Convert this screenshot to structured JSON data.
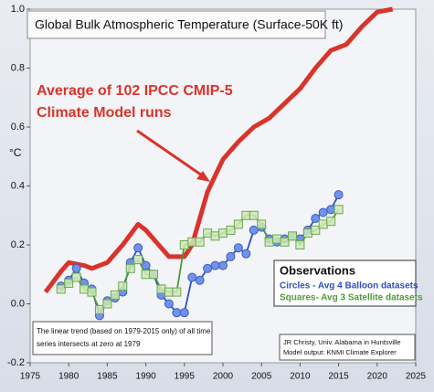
{
  "chart_data": {
    "type": "line",
    "title": "Global Bulk Atmospheric Temperature (Surface-50K ft)",
    "ylabel": "°C",
    "xlim": [
      1975,
      2025
    ],
    "xticks": [
      1975,
      1980,
      1985,
      1990,
      1995,
      2000,
      2005,
      2010,
      2015,
      2020,
      2025
    ],
    "ylim": [
      -0.2,
      1.0
    ],
    "yticks": [
      -0.2,
      {
        "value": 0,
        "label": "0.0"
      },
      0.2,
      0.4,
      0.6,
      0.8,
      {
        "value": 1,
        "label": "1.0"
      }
    ],
    "legend_title": "Observations",
    "note": [
      "The linear trend (based on 1979-2015 only) of all time",
      "series intersects at zero at 1979"
    ],
    "credits": [
      "JR Christy, Univ. Alabama in Huntsville",
      "Model output: KNMI Climate Explorer"
    ],
    "series": [
      {
        "name": [
          "Average of 102 IPCC CMIP-5",
          "Climate Model runs"
        ],
        "color": "#d9342b",
        "marker": "none",
        "x": [
          1977,
          1979,
          1980,
          1982,
          1983,
          1985,
          1987,
          1989,
          1990,
          1992,
          1993,
          1995,
          1996,
          1998,
          2000,
          2002,
          2004,
          2006,
          2008,
          2010,
          2012,
          2014,
          2016,
          2018,
          2020,
          2022
        ],
        "values": [
          0.04,
          0.11,
          0.14,
          0.13,
          0.12,
          0.14,
          0.2,
          0.27,
          0.25,
          0.19,
          0.16,
          0.16,
          0.2,
          0.38,
          0.49,
          0.55,
          0.6,
          0.63,
          0.68,
          0.73,
          0.8,
          0.86,
          0.88,
          0.94,
          0.99,
          1.0
        ]
      },
      {
        "name": "Circles - Avg 4 Balloon datasets",
        "color": "#2f4fc0",
        "marker": "circle",
        "x": [
          1979,
          1980,
          1981,
          1982,
          1983,
          1984,
          1985,
          1986,
          1987,
          1988,
          1989,
          1990,
          1991,
          1992,
          1993,
          1994,
          1995,
          1996,
          1997,
          1998,
          1999,
          2000,
          2001,
          2002,
          2003,
          2004,
          2005,
          2006,
          2007,
          2008,
          2009,
          2010,
          2011,
          2012,
          2013,
          2014,
          2015
        ],
        "values": [
          0.06,
          0.08,
          0.12,
          0.07,
          0.05,
          -0.04,
          0.01,
          0.02,
          0.04,
          0.14,
          0.19,
          0.13,
          0.1,
          0.03,
          0.0,
          -0.03,
          -0.03,
          0.09,
          0.08,
          0.12,
          0.13,
          0.13,
          0.16,
          0.19,
          0.17,
          0.25,
          0.26,
          0.22,
          0.21,
          0.22,
          0.23,
          0.22,
          0.25,
          0.29,
          0.31,
          0.32,
          0.37
        ]
      },
      {
        "name": "Squares- Avg 3 Satellite datasets",
        "color": "#4f9a3a",
        "marker": "square",
        "x": [
          1979,
          1980,
          1981,
          1982,
          1983,
          1984,
          1985,
          1986,
          1987,
          1988,
          1989,
          1990,
          1991,
          1992,
          1993,
          1994,
          1995,
          1996,
          1997,
          1998,
          1999,
          2000,
          2001,
          2002,
          2003,
          2004,
          2005,
          2006,
          2007,
          2008,
          2009,
          2010,
          2011,
          2012,
          2013,
          2014,
          2015
        ],
        "values": [
          0.05,
          0.07,
          0.09,
          0.05,
          0.04,
          -0.02,
          0.0,
          0.03,
          0.06,
          0.12,
          0.15,
          0.1,
          0.1,
          0.05,
          0.04,
          0.04,
          0.2,
          0.21,
          0.21,
          0.24,
          0.23,
          0.24,
          0.25,
          0.27,
          0.3,
          0.3,
          0.27,
          0.21,
          0.22,
          0.21,
          0.23,
          0.2,
          0.24,
          0.25,
          0.27,
          0.28,
          0.32
        ]
      }
    ]
  }
}
